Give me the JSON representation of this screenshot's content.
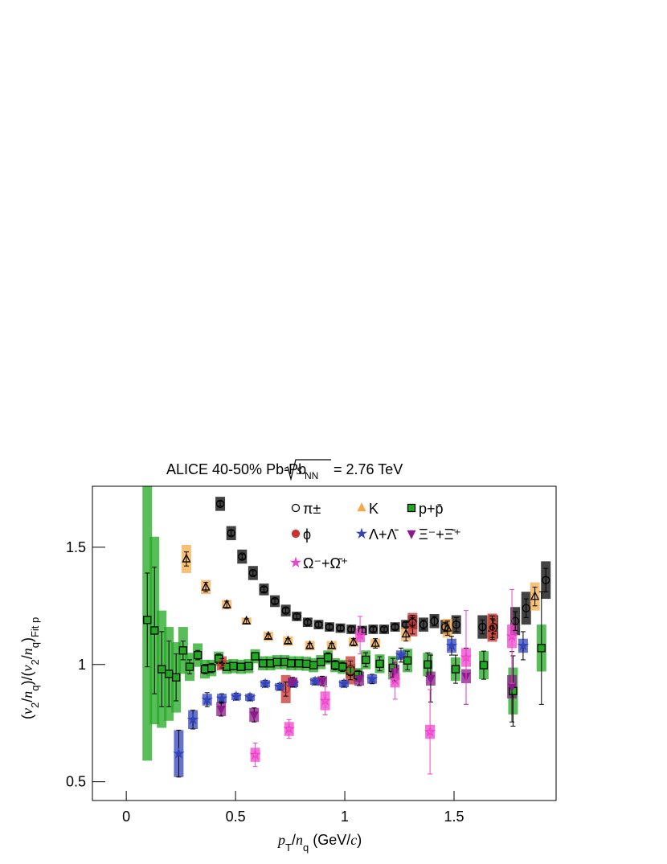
{
  "chart_data": {
    "type": "scatter",
    "title": {
      "prefix": "ALICE 40-50% Pb-Pb",
      "sqrt_var": "s",
      "sub": "NN",
      "suffix": "= 2.76 TeV"
    },
    "xlabel": [
      "p",
      "T",
      "/",
      "n",
      "q",
      " (GeV/",
      "c",
      ")"
    ],
    "ylabel": [
      "(",
      "v",
      "2",
      "/",
      "n",
      "q",
      ")/(",
      "v",
      "2",
      "/",
      "n",
      "q",
      ")",
      "Fit p"
    ],
    "xlim": [
      -0.155,
      1.967
    ],
    "ylim": [
      0.42,
      1.76
    ],
    "xticks": [
      0,
      0.5,
      1,
      1.5
    ],
    "yticks": [
      0.5,
      1,
      1.5
    ],
    "series": [
      {
        "name": "π±",
        "color": "#222222",
        "marker": "circle",
        "filled": false,
        "x": [
          0.43,
          0.48,
          0.53,
          0.58,
          0.63,
          0.68,
          0.73,
          0.78,
          0.83,
          0.88,
          0.93,
          0.98,
          1.03,
          1.08,
          1.13,
          1.18,
          1.23,
          1.28,
          1.31,
          1.36,
          1.41,
          1.46,
          1.51,
          1.63,
          1.68,
          1.78,
          1.83,
          1.92
        ],
        "values": [
          1.685,
          1.56,
          1.46,
          1.39,
          1.32,
          1.27,
          1.23,
          1.205,
          1.18,
          1.17,
          1.16,
          1.155,
          1.15,
          1.145,
          1.15,
          1.15,
          1.16,
          1.17,
          1.18,
          1.17,
          1.185,
          1.16,
          1.17,
          1.16,
          1.16,
          1.185,
          1.24,
          1.36
        ],
        "errors": [
          0.01,
          0.01,
          0.01,
          0.01,
          0.01,
          0.01,
          0.01,
          0.01,
          0.01,
          0.01,
          0.01,
          0.01,
          0.01,
          0.01,
          0.01,
          0.01,
          0.01,
          0.01,
          0.02,
          0.02,
          0.02,
          0.02,
          0.03,
          0.03,
          0.03,
          0.04,
          0.04,
          0.05
        ],
        "sys": [
          0.03,
          0.03,
          0.03,
          0.03,
          0.025,
          0.025,
          0.025,
          0.02,
          0.02,
          0.02,
          0.02,
          0.02,
          0.02,
          0.02,
          0.02,
          0.02,
          0.02,
          0.02,
          0.03,
          0.03,
          0.03,
          0.03,
          0.04,
          0.05,
          0.05,
          0.06,
          0.07,
          0.08
        ]
      },
      {
        "name": "K",
        "color": "#f5a94a",
        "marker": "triangle",
        "filled": false,
        "x": [
          0.275,
          0.364,
          0.46,
          0.55,
          0.65,
          0.74,
          0.84,
          0.94,
          1.04,
          1.14,
          1.28,
          1.47,
          1.675,
          1.87
        ],
        "values": [
          1.45,
          1.33,
          1.255,
          1.185,
          1.12,
          1.1,
          1.08,
          1.08,
          1.095,
          1.09,
          1.13,
          1.155,
          1.155,
          1.29
        ],
        "errors": [
          0.03,
          0.02,
          0.015,
          0.01,
          0.01,
          0.01,
          0.01,
          0.01,
          0.015,
          0.02,
          0.03,
          0.03,
          0.04,
          0.04
        ],
        "sys": [
          0.06,
          0.03,
          0.02,
          0.015,
          0.02,
          0.02,
          0.02,
          0.02,
          0.02,
          0.02,
          0.03,
          0.04,
          0.05,
          0.06
        ]
      },
      {
        "name": "p+p̄",
        "color": "#22a822",
        "marker": "square",
        "filled": true,
        "x": [
          0.096,
          0.129,
          0.162,
          0.195,
          0.228,
          0.26,
          0.29,
          0.327,
          0.36,
          0.39,
          0.423,
          0.46,
          0.49,
          0.525,
          0.56,
          0.59,
          0.625,
          0.66,
          0.69,
          0.725,
          0.754,
          0.79,
          0.824,
          0.857,
          0.89,
          0.923,
          0.956,
          0.99,
          1.026,
          1.06,
          1.096,
          1.16,
          1.22,
          1.287,
          1.38,
          1.507,
          1.636,
          1.77,
          1.9
        ],
        "values": [
          1.19,
          1.145,
          0.98,
          0.96,
          0.945,
          1.06,
          0.99,
          1.04,
          0.98,
          0.985,
          1.025,
          0.99,
          0.993,
          0.99,
          0.993,
          1.035,
          1.005,
          1.005,
          1.01,
          1.01,
          1.005,
          1.005,
          1.003,
          0.997,
          1.01,
          1.03,
          0.997,
          0.99,
          0.973,
          0.955,
          1.02,
          1.003,
          0.986,
          1.017,
          1.0,
          0.98,
          0.997,
          0.887,
          1.07
        ],
        "errors": [
          0.2,
          0.27,
          0.16,
          0.14,
          0.1,
          0.04,
          0.03,
          0.02,
          0.02,
          0.02,
          0.02,
          0.015,
          0.015,
          0.015,
          0.015,
          0.015,
          0.015,
          0.015,
          0.015,
          0.015,
          0.015,
          0.015,
          0.015,
          0.015,
          0.015,
          0.02,
          0.02,
          0.02,
          0.02,
          0.02,
          0.03,
          0.03,
          0.04,
          0.04,
          0.05,
          0.06,
          0.06,
          0.15,
          0.24
        ],
        "sys": [
          0.6,
          0.4,
          0.25,
          0.2,
          0.15,
          0.1,
          0.06,
          0.05,
          0.04,
          0.035,
          0.03,
          0.03,
          0.03,
          0.03,
          0.03,
          0.03,
          0.03,
          0.03,
          0.03,
          0.03,
          0.03,
          0.03,
          0.03,
          0.03,
          0.03,
          0.03,
          0.03,
          0.03,
          0.03,
          0.03,
          0.04,
          0.04,
          0.05,
          0.05,
          0.05,
          0.05,
          0.06,
          0.1,
          0.1
        ]
      },
      {
        "name": "ϕ",
        "color": "#c83232",
        "marker": "circle",
        "filled": false,
        "x": [
          0.437,
          0.73,
          1.026,
          1.31,
          1.675
        ],
        "values": [
          1.005,
          0.895,
          0.975,
          1.17,
          1.157
        ],
        "errors": [
          0.02,
          0.03,
          0.04,
          0.04,
          0.05
        ],
        "sys": [
          0.03,
          0.06,
          0.06,
          0.05,
          0.06
        ]
      },
      {
        "name": "Λ+Λ̄",
        "color": "#3344bb",
        "marker": "star",
        "filled": true,
        "x": [
          0.24,
          0.305,
          0.37,
          0.437,
          0.503,
          0.566,
          0.636,
          0.702,
          0.765,
          0.864,
          0.996,
          1.125,
          1.257,
          1.489,
          1.816
        ],
        "values": [
          0.62,
          0.765,
          0.85,
          0.855,
          0.863,
          0.86,
          0.918,
          0.905,
          0.918,
          0.928,
          0.918,
          0.938,
          1.04,
          1.08,
          1.08
        ],
        "errors": [
          0.1,
          0.04,
          0.03,
          0.02,
          0.015,
          0.015,
          0.015,
          0.015,
          0.015,
          0.015,
          0.015,
          0.02,
          0.03,
          0.04,
          0.06
        ],
        "sys": [
          0.1,
          0.04,
          0.025,
          0.02,
          0.015,
          0.015,
          0.015,
          0.015,
          0.015,
          0.015,
          0.015,
          0.02,
          0.02,
          0.03,
          0.03
        ]
      },
      {
        "name": "Ξ⁻+Ξ̄⁺",
        "color": "#8b1a8b",
        "marker": "triangle-down",
        "filled": true,
        "x": [
          0.434,
          0.585,
          0.761,
          0.897,
          1.066,
          1.228,
          1.393,
          1.555,
          1.765
        ],
        "values": [
          0.81,
          0.785,
          0.925,
          0.93,
          0.94,
          0.97,
          0.94,
          0.95,
          0.905
        ],
        "errors": [
          0.03,
          0.03,
          0.02,
          0.02,
          0.03,
          0.04,
          0.1,
          0.12,
          0.15
        ],
        "sys": [
          0.03,
          0.03,
          0.02,
          0.02,
          0.03,
          0.03,
          0.03,
          0.03,
          0.05
        ]
      },
      {
        "name": "Ω⁻+Ω̄⁺",
        "color": "#ee44cc",
        "marker": "star",
        "filled": false,
        "x": [
          0.59,
          0.745,
          0.91,
          1.07,
          1.23,
          1.39,
          1.555,
          1.765
        ],
        "values": [
          0.615,
          0.725,
          0.845,
          1.125,
          0.932,
          0.713,
          1.03,
          1.12
        ],
        "errors": [
          0.05,
          0.04,
          0.06,
          0.08,
          0.08,
          0.18,
          0.2,
          0.2
        ],
        "sys": [
          0.03,
          0.03,
          0.04,
          0.03,
          0.03,
          0.03,
          0.04,
          0.05
        ]
      }
    ]
  }
}
